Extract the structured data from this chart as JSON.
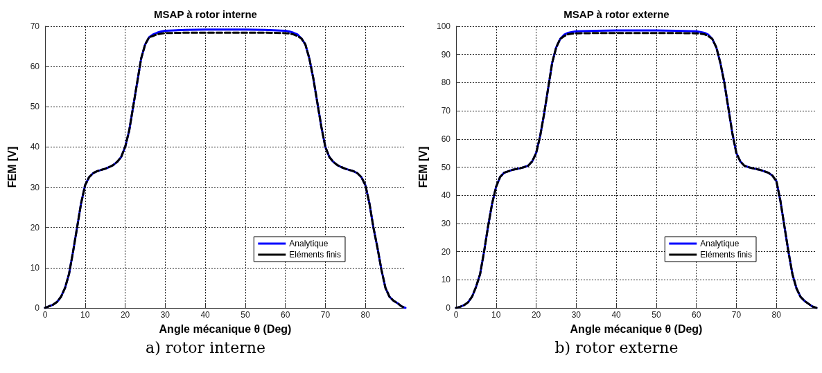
{
  "chart_data": [
    {
      "type": "line",
      "title": "MSAP à rotor interne",
      "xlabel": "Angle mécanique θ (Deg)",
      "ylabel": "FEM [V]",
      "annotations": [
        "a) rotor interne"
      ],
      "x": [
        0,
        1,
        2,
        3,
        4,
        5,
        6,
        7,
        8,
        9,
        10,
        11,
        12,
        13,
        14,
        15,
        16,
        17,
        18,
        19,
        20,
        21,
        22,
        23,
        24,
        25,
        26,
        27,
        28,
        29,
        30,
        35,
        40,
        45,
        50,
        55,
        60,
        61,
        62,
        63,
        64,
        65,
        66,
        67,
        68,
        69,
        70,
        71,
        72,
        73,
        74,
        75,
        76,
        77,
        78,
        79,
        80,
        81,
        82,
        83,
        84,
        85,
        86,
        87,
        88,
        89,
        90
      ],
      "series": [
        {
          "name": "Analytique",
          "color": "#0000ff",
          "line_style": "solid",
          "values": [
            0,
            0.4,
            0.8,
            1.5,
            2.8,
            5,
            8.5,
            14,
            20,
            26,
            30.5,
            32.5,
            33.5,
            34,
            34.3,
            34.6,
            35,
            35.5,
            36.3,
            37.5,
            40,
            44,
            50,
            56,
            62,
            65.5,
            67.3,
            68,
            68.4,
            68.7,
            68.9,
            69.1,
            69.2,
            69.2,
            69.2,
            69.1,
            68.9,
            68.7,
            68.4,
            68,
            67,
            65.5,
            62,
            57,
            51,
            45,
            40,
            37.5,
            36.3,
            35.5,
            35,
            34.6,
            34.3,
            34,
            33.5,
            32.5,
            30.5,
            26,
            20,
            15,
            9.5,
            5,
            2.8,
            1.8,
            1.2,
            0.4,
            0
          ]
        },
        {
          "name": "Eléments finis",
          "color": "#000000",
          "line_style": "dashed",
          "values": [
            0,
            0.4,
            0.8,
            1.5,
            2.8,
            5,
            8.5,
            14,
            20,
            26,
            30.5,
            32.5,
            33.5,
            34,
            34.3,
            34.6,
            35,
            35.5,
            36.3,
            37.5,
            40,
            44,
            50,
            56,
            62,
            65.5,
            67.3,
            67.6,
            68,
            68.2,
            68.3,
            68.4,
            68.4,
            68.4,
            68.4,
            68.4,
            68.3,
            68.2,
            68,
            67.6,
            67,
            65.5,
            62,
            57,
            51,
            45,
            40,
            37.5,
            36.3,
            35.5,
            35,
            34.6,
            34.3,
            34,
            33.5,
            32.5,
            30.5,
            26,
            20,
            15,
            9.5,
            5,
            2.8,
            1.8,
            1.2,
            0.4,
            0
          ]
        }
      ],
      "xlim": [
        0,
        90
      ],
      "xticks": [
        0,
        10,
        20,
        30,
        40,
        50,
        60,
        70,
        80
      ],
      "ylim": [
        0,
        70
      ],
      "yticks": [
        0,
        10,
        20,
        30,
        40,
        50,
        60,
        70
      ],
      "grid": true,
      "legend": "bottom right",
      "marker": "none"
    },
    {
      "type": "line",
      "title": "MSAP à rotor externe",
      "xlabel": "Angle mécanique θ (Deg)",
      "ylabel": "FEM [V]",
      "annotations": [
        "b) rotor externe"
      ],
      "x": [
        0,
        1,
        2,
        3,
        4,
        5,
        6,
        7,
        8,
        9,
        10,
        11,
        12,
        13,
        14,
        15,
        16,
        17,
        18,
        19,
        20,
        21,
        22,
        23,
        24,
        25,
        26,
        27,
        28,
        29,
        30,
        35,
        40,
        45,
        50,
        55,
        60,
        61,
        62,
        63,
        64,
        65,
        66,
        67,
        68,
        69,
        70,
        71,
        72,
        73,
        74,
        75,
        76,
        77,
        78,
        79,
        80,
        81,
        82,
        83,
        84,
        85,
        86,
        87,
        88,
        89,
        90
      ],
      "series": [
        {
          "name": "Analytique",
          "color": "#0000ff",
          "line_style": "solid",
          "values": [
            0,
            0.4,
            1,
            2,
            4,
            7.5,
            12,
            20,
            29,
            37,
            43,
            46.5,
            48,
            48.5,
            49,
            49.3,
            49.6,
            50,
            50.5,
            52,
            55,
            61,
            69,
            78,
            87,
            92.5,
            95.5,
            97,
            97.7,
            98,
            98.2,
            98.4,
            98.5,
            98.5,
            98.5,
            98.4,
            98.2,
            98,
            97.7,
            97,
            95.5,
            92.5,
            87,
            80,
            71,
            62,
            55,
            52,
            50.5,
            50,
            49.6,
            49.3,
            49,
            48.5,
            48,
            47,
            45,
            38,
            29,
            20,
            12,
            7,
            4,
            2.5,
            1.5,
            0.5,
            0
          ]
        },
        {
          "name": "Eléments finis",
          "color": "#000000",
          "line_style": "dashed",
          "values": [
            0,
            0.4,
            1,
            2,
            4,
            7.5,
            12,
            20,
            29,
            37,
            43,
            46.5,
            48,
            48.5,
            49,
            49.3,
            49.6,
            50,
            50.5,
            52,
            55,
            61,
            69,
            78,
            87,
            92.5,
            95.5,
            96.5,
            97.2,
            97.4,
            97.5,
            97.6,
            97.6,
            97.6,
            97.6,
            97.6,
            97.5,
            97.4,
            97.2,
            96.5,
            95.5,
            92.5,
            87,
            80,
            71,
            62,
            55,
            52,
            50.5,
            50,
            49.6,
            49.3,
            49,
            48.5,
            48,
            47,
            45,
            38,
            29,
            20,
            12,
            7,
            4,
            2.5,
            1.5,
            0.5,
            0
          ]
        }
      ],
      "xlim": [
        0,
        90
      ],
      "xticks": [
        0,
        10,
        20,
        30,
        40,
        50,
        60,
        70,
        80
      ],
      "ylim": [
        0,
        100
      ],
      "yticks": [
        0,
        10,
        20,
        30,
        40,
        50,
        60,
        70,
        80,
        90,
        100
      ],
      "grid": true,
      "legend": "bottom right",
      "marker": "none"
    }
  ]
}
